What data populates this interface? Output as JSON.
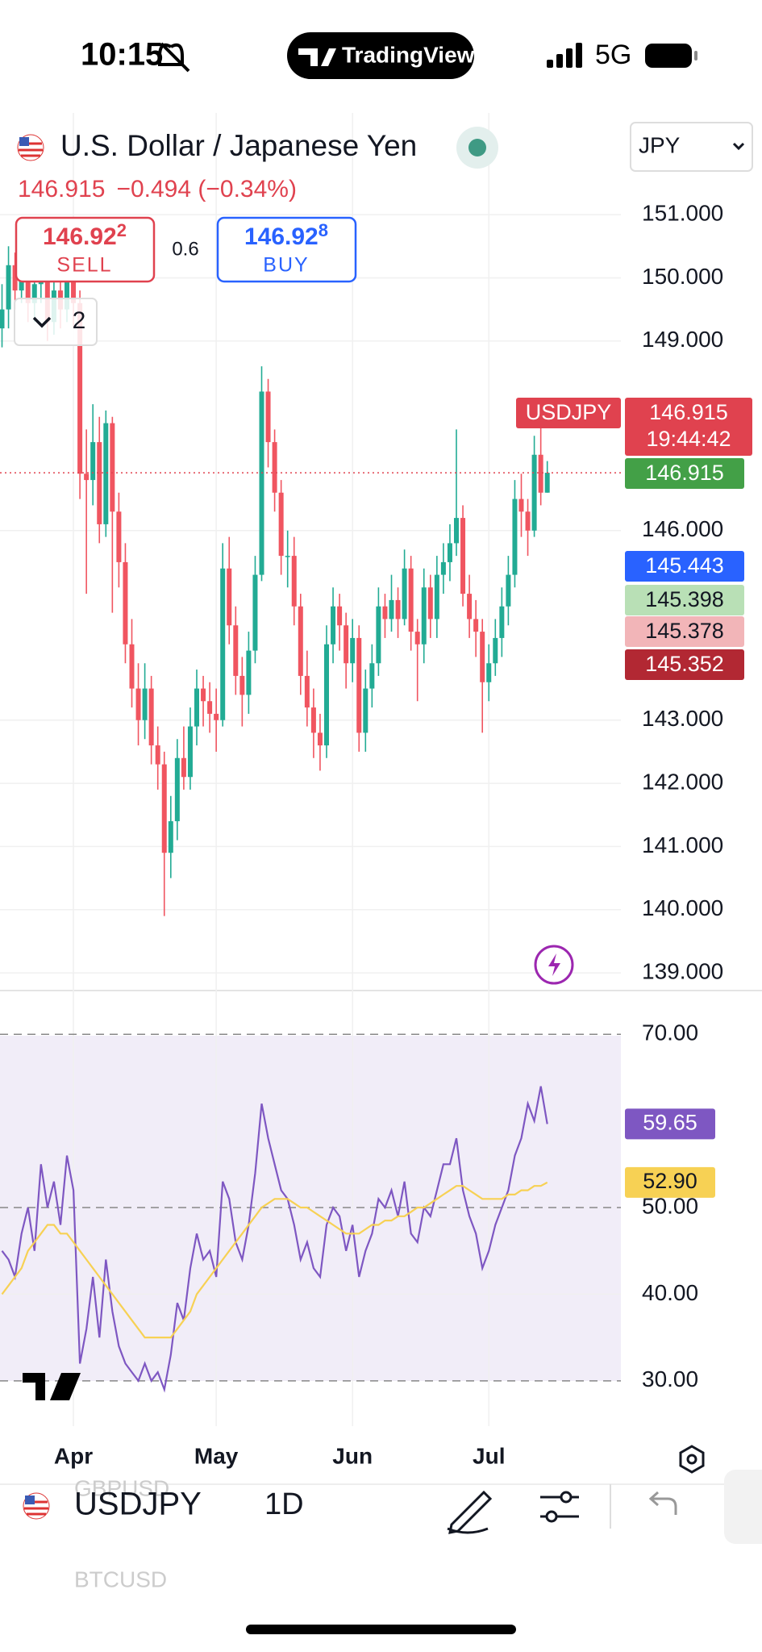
{
  "status_bar": {
    "time": "10:15",
    "network": "5G"
  },
  "brand": "TradingView",
  "header": {
    "title": "U.S. Dollar / Japanese Yen",
    "currency": "JPY",
    "quote": "146.915",
    "change": "−0.494 (−0.34%)"
  },
  "trade": {
    "sell_price": "146.92",
    "sell_pip": "2",
    "sell": "SELL",
    "spread": "0.6",
    "buy_price": "146.92",
    "buy_pip": "8",
    "buy": "BUY"
  },
  "indicators_count": "2",
  "price_labels": {
    "symbol": "USDJPY",
    "last": "146.915",
    "countdown": "19:44:42",
    "last_close": "146.915",
    "blue": "145.443",
    "green": "145.398",
    "pink": "145.378",
    "darkred": "145.352"
  },
  "chart_data": [
    {
      "type": "candlestick",
      "up_color": "#22ab94",
      "down_color": "#f05560",
      "grid": true,
      "ylim": [
        138.72,
        152.61
      ],
      "yticks": [
        {
          "value": 151,
          "label": "151.000"
        },
        {
          "value": 150,
          "label": "150.000"
        },
        {
          "value": 149,
          "label": "149.000"
        },
        {
          "value": 146,
          "label": "146.000"
        },
        {
          "value": 143,
          "label": "143.000"
        },
        {
          "value": 142,
          "label": "142.000"
        },
        {
          "value": 141,
          "label": "141.000"
        },
        {
          "value": 140,
          "label": "140.000"
        },
        {
          "value": 139,
          "label": "139.000"
        }
      ],
      "categories": [
        null,
        null,
        null,
        null,
        null,
        null,
        null,
        null,
        null,
        null,
        null,
        "Apr",
        null,
        null,
        null,
        null,
        null,
        null,
        null,
        null,
        null,
        null,
        null,
        null,
        null,
        null,
        null,
        null,
        null,
        null,
        null,
        null,
        null,
        "May",
        null,
        null,
        null,
        null,
        null,
        null,
        null,
        null,
        null,
        null,
        null,
        null,
        null,
        null,
        null,
        null,
        null,
        null,
        null,
        null,
        "Jun",
        null,
        null,
        null,
        null,
        null,
        null,
        null,
        null,
        null,
        null,
        null,
        null,
        null,
        null,
        null,
        null,
        null,
        null,
        null,
        null,
        "Jul",
        null,
        null,
        null,
        null,
        null,
        null,
        null,
        null,
        null
      ],
      "ohlc": [
        [
          149.2,
          149.9,
          148.9,
          149.5
        ],
        [
          149.5,
          150.5,
          149.2,
          150.2
        ],
        [
          150.2,
          150.4,
          149.5,
          149.8
        ],
        [
          149.8,
          150.9,
          149.6,
          150.5
        ],
        [
          150.5,
          150.6,
          149.3,
          149.6
        ],
        [
          149.6,
          150.2,
          149.3,
          149.9
        ],
        [
          149.9,
          150.4,
          149.6,
          150.0
        ],
        [
          150.0,
          150.1,
          149.0,
          149.3
        ],
        [
          149.3,
          150.1,
          149.1,
          149.8
        ],
        [
          149.8,
          150.0,
          149.2,
          149.5
        ],
        [
          149.5,
          150.3,
          149.3,
          150.0
        ],
        [
          150.0,
          150.2,
          149.2,
          149.6
        ],
        [
          149.6,
          149.8,
          146.5,
          146.9
        ],
        [
          146.9,
          147.6,
          145.0,
          146.8
        ],
        [
          146.8,
          148.0,
          146.4,
          147.4
        ],
        [
          147.4,
          147.8,
          145.8,
          146.1
        ],
        [
          146.1,
          147.9,
          145.9,
          147.7
        ],
        [
          147.7,
          147.8,
          144.7,
          146.3
        ],
        [
          146.3,
          146.6,
          145.1,
          145.5
        ],
        [
          145.5,
          145.8,
          143.9,
          144.2
        ],
        [
          144.2,
          144.6,
          143.2,
          143.5
        ],
        [
          143.5,
          143.9,
          142.6,
          143.0
        ],
        [
          143.0,
          143.9,
          142.7,
          143.5
        ],
        [
          143.5,
          143.7,
          142.3,
          142.6
        ],
        [
          142.6,
          142.9,
          141.9,
          142.3
        ],
        [
          142.3,
          142.5,
          139.9,
          140.9
        ],
        [
          140.9,
          141.8,
          140.5,
          141.4
        ],
        [
          141.4,
          142.7,
          141.1,
          142.4
        ],
        [
          142.4,
          142.9,
          141.9,
          142.1
        ],
        [
          142.1,
          143.2,
          141.9,
          142.9
        ],
        [
          142.9,
          143.8,
          142.6,
          143.5
        ],
        [
          143.5,
          143.7,
          142.9,
          143.3
        ],
        [
          143.3,
          143.6,
          142.8,
          143.1
        ],
        [
          143.1,
          143.5,
          142.5,
          143.0
        ],
        [
          143.0,
          145.8,
          142.9,
          145.4
        ],
        [
          145.4,
          145.9,
          144.2,
          144.5
        ],
        [
          144.5,
          144.8,
          143.4,
          143.7
        ],
        [
          143.7,
          144.0,
          142.9,
          143.4
        ],
        [
          143.4,
          144.4,
          143.1,
          144.1
        ],
        [
          144.1,
          145.6,
          143.9,
          145.3
        ],
        [
          145.3,
          148.6,
          145.2,
          148.2
        ],
        [
          148.2,
          148.4,
          147.0,
          147.4
        ],
        [
          147.4,
          147.6,
          146.3,
          146.6
        ],
        [
          146.6,
          146.8,
          145.3,
          145.6
        ],
        [
          145.6,
          146.0,
          145.1,
          145.6
        ],
        [
          145.6,
          145.9,
          144.5,
          144.8
        ],
        [
          144.8,
          145.0,
          143.4,
          143.7
        ],
        [
          143.7,
          144.1,
          142.9,
          143.2
        ],
        [
          143.2,
          143.5,
          142.4,
          142.8
        ],
        [
          142.8,
          143.1,
          142.2,
          142.6
        ],
        [
          142.6,
          144.5,
          142.4,
          144.2
        ],
        [
          144.2,
          145.1,
          143.9,
          144.8
        ],
        [
          144.8,
          145.0,
          144.1,
          144.5
        ],
        [
          144.5,
          144.7,
          143.5,
          143.9
        ],
        [
          143.9,
          144.6,
          143.6,
          144.3
        ],
        [
          144.3,
          144.5,
          142.5,
          142.8
        ],
        [
          142.8,
          143.8,
          142.5,
          143.5
        ],
        [
          143.5,
          144.2,
          143.2,
          143.9
        ],
        [
          143.9,
          145.1,
          143.7,
          144.8
        ],
        [
          144.8,
          145.0,
          144.3,
          144.6
        ],
        [
          144.6,
          145.3,
          144.4,
          144.9
        ],
        [
          144.9,
          145.1,
          144.3,
          144.6
        ],
        [
          144.6,
          145.7,
          144.5,
          145.4
        ],
        [
          145.4,
          145.6,
          144.1,
          144.4
        ],
        [
          144.4,
          144.6,
          143.3,
          144.2
        ],
        [
          144.2,
          145.4,
          143.9,
          145.1
        ],
        [
          145.1,
          145.3,
          144.3,
          144.6
        ],
        [
          144.6,
          145.6,
          144.3,
          145.3
        ],
        [
          145.3,
          145.8,
          145.0,
          145.5
        ],
        [
          145.5,
          146.1,
          145.2,
          145.8
        ],
        [
          145.8,
          147.6,
          145.6,
          146.2
        ],
        [
          146.2,
          146.4,
          144.8,
          145.0
        ],
        [
          145.0,
          145.3,
          144.3,
          144.6
        ],
        [
          144.6,
          144.9,
          144.0,
          144.4
        ],
        [
          144.4,
          144.6,
          142.8,
          143.6
        ],
        [
          143.6,
          144.2,
          143.3,
          143.9
        ],
        [
          143.9,
          144.6,
          143.7,
          144.3
        ],
        [
          144.3,
          145.1,
          144.0,
          144.8
        ],
        [
          144.8,
          145.6,
          144.5,
          145.3
        ],
        [
          145.3,
          146.8,
          145.1,
          146.5
        ],
        [
          146.5,
          146.9,
          145.9,
          146.3
        ],
        [
          146.3,
          146.5,
          145.6,
          146.0
        ],
        [
          146.0,
          147.5,
          145.9,
          147.2
        ],
        [
          147.2,
          147.7,
          146.4,
          146.6
        ],
        [
          146.6,
          147.1,
          146.6,
          146.915
        ]
      ]
    },
    {
      "type": "line",
      "ylim": [
        24.77,
        75.05
      ],
      "yticks": [
        {
          "value": 70,
          "label": "70.00"
        },
        {
          "value": 50,
          "label": "50.00"
        },
        {
          "value": 40,
          "label": "40.00"
        },
        {
          "value": 30,
          "label": "30.00"
        }
      ],
      "value_labels": [
        "59.65",
        "52.90"
      ],
      "series": [
        {
          "color": "#7e57c2",
          "values": [
            45,
            44,
            42,
            47,
            50,
            45,
            55,
            50,
            53,
            48,
            56,
            52,
            32,
            36,
            42,
            35,
            44,
            38,
            34,
            32,
            31,
            30,
            32,
            30,
            31,
            29,
            33,
            39,
            37,
            43,
            47,
            44,
            45,
            42,
            53,
            51,
            46,
            44,
            48,
            54,
            62,
            58,
            55,
            52,
            51,
            48,
            44,
            46,
            43,
            42,
            48,
            50,
            49,
            45,
            48,
            42,
            45,
            47,
            51,
            50,
            52,
            49,
            53,
            47,
            46,
            50,
            49,
            52,
            55,
            55,
            58,
            52,
            49,
            47,
            43,
            45,
            48,
            50,
            52,
            56,
            58,
            62,
            60,
            64,
            59.65
          ]
        },
        {
          "color": "#f7d154",
          "values": [
            40,
            41,
            42,
            43,
            45,
            46,
            47,
            48,
            48,
            47,
            47,
            46,
            45,
            44,
            43,
            42,
            41,
            40,
            39,
            38,
            37,
            36,
            35,
            35,
            35,
            35,
            35,
            36,
            37,
            38,
            40,
            41,
            42,
            43,
            44,
            45,
            46,
            47,
            48,
            49,
            50,
            50.5,
            51,
            51,
            51,
            50.5,
            50,
            50,
            49.5,
            49,
            48.5,
            48,
            47.5,
            47,
            47,
            47,
            47.5,
            48,
            48,
            48.5,
            48.5,
            49,
            49,
            49.5,
            50,
            50,
            50.5,
            51,
            51.5,
            52,
            52.5,
            52.5,
            52,
            51.5,
            51,
            51,
            51,
            51,
            51.5,
            51.5,
            52,
            52,
            52.5,
            52.5,
            52.9
          ]
        }
      ]
    }
  ],
  "toolbar": {
    "prev": "GBPUSD",
    "symbol": "USDJPY",
    "interval": "1D",
    "next": "BTCUSD"
  }
}
